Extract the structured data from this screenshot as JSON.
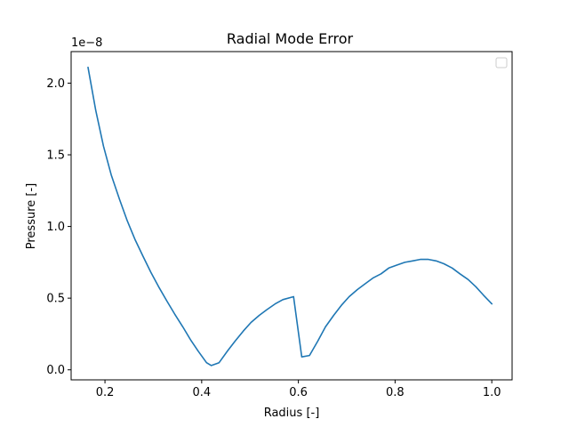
{
  "chart_data": {
    "type": "line",
    "title": "Radial Mode Error",
    "xlabel": "Radius [-]",
    "ylabel": "Pressure [-]",
    "y_offset_label": "1e−8",
    "xlim": [
      0.13,
      1.042
    ],
    "ylim": [
      -0.07,
      2.22
    ],
    "xticks": [
      0.2,
      0.4,
      0.6,
      0.8,
      1.0
    ],
    "xtick_labels": [
      "0.2",
      "0.4",
      "0.6",
      "0.8",
      "1.0"
    ],
    "yticks": [
      0.0,
      0.5,
      1.0,
      1.5,
      2.0
    ],
    "ytick_labels": [
      "0.0",
      "0.5",
      "1.0",
      "1.5",
      "2.0"
    ],
    "grid": false,
    "legend": {
      "placement": "top-right",
      "entries": []
    },
    "series": [
      {
        "color": "#1f77b4",
        "x": [
          0.165,
          0.181,
          0.197,
          0.213,
          0.23,
          0.246,
          0.262,
          0.279,
          0.295,
          0.311,
          0.328,
          0.344,
          0.361,
          0.377,
          0.393,
          0.41,
          0.42,
          0.436,
          0.453,
          0.469,
          0.486,
          0.502,
          0.519,
          0.535,
          0.552,
          0.568,
          0.59,
          0.607,
          0.623,
          0.64,
          0.656,
          0.673,
          0.689,
          0.705,
          0.722,
          0.738,
          0.754,
          0.771,
          0.787,
          0.803,
          0.82,
          0.836,
          0.852,
          0.869,
          0.885,
          0.901,
          0.918,
          0.934,
          0.951,
          0.967,
          0.983,
          1.0
        ],
        "y": [
          2.11,
          1.81,
          1.56,
          1.36,
          1.19,
          1.04,
          0.91,
          0.79,
          0.68,
          0.58,
          0.48,
          0.39,
          0.3,
          0.21,
          0.13,
          0.05,
          0.03,
          0.05,
          0.13,
          0.2,
          0.27,
          0.33,
          0.38,
          0.42,
          0.46,
          0.49,
          0.51,
          0.09,
          0.1,
          0.2,
          0.3,
          0.38,
          0.45,
          0.51,
          0.56,
          0.6,
          0.64,
          0.67,
          0.71,
          0.73,
          0.75,
          0.76,
          0.77,
          0.77,
          0.76,
          0.74,
          0.71,
          0.67,
          0.63,
          0.58,
          0.52,
          0.46
        ]
      }
    ]
  }
}
